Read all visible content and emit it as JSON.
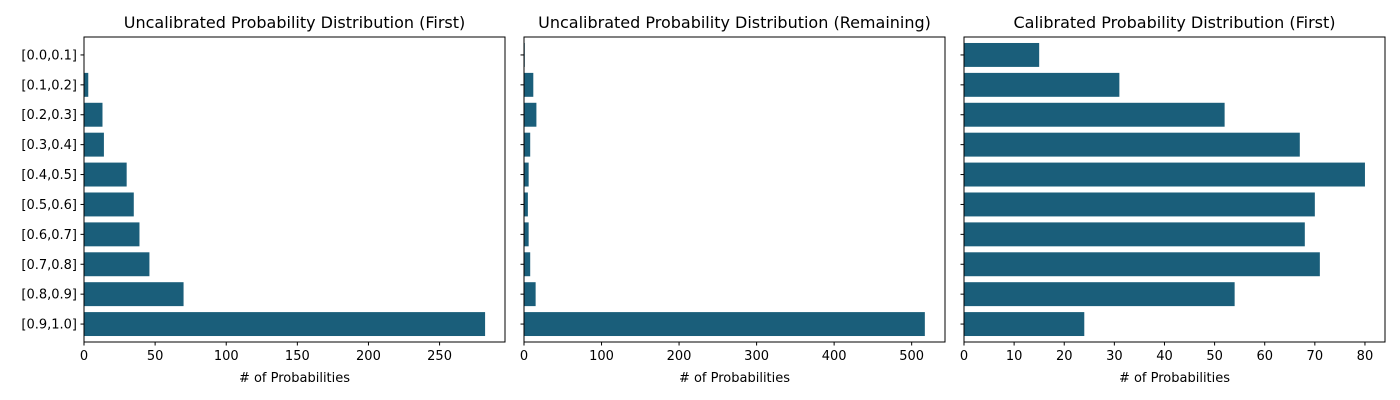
{
  "chart_data": [
    {
      "type": "bar",
      "orientation": "horizontal",
      "title": "Uncalibrated Probability Distribution (First)",
      "xlabel": "# of Probabilities",
      "ylabel": "",
      "categories": [
        "[0.0,0.1]",
        "[0.1,0.2]",
        "[0.2,0.3]",
        "[0.3,0.4]",
        "[0.4,0.5]",
        "[0.5,0.6]",
        "[0.6,0.7]",
        "[0.7,0.8]",
        "[0.8,0.9]",
        "[0.9,1.0]"
      ],
      "values": [
        0,
        3,
        13,
        14,
        30,
        35,
        39,
        46,
        70,
        282
      ],
      "xlim": [
        0,
        296
      ],
      "xticks": [
        0,
        50,
        100,
        150,
        200,
        250
      ],
      "show_ytick_labels": true,
      "grid": false,
      "color": "#1a5e7a"
    },
    {
      "type": "bar",
      "orientation": "horizontal",
      "title": "Uncalibrated Probability Distribution (Remaining)",
      "xlabel": "# of Probabilities",
      "ylabel": "",
      "categories": [
        "[0.0,0.1]",
        "[0.1,0.2]",
        "[0.2,0.3]",
        "[0.3,0.4]",
        "[0.4,0.5]",
        "[0.5,0.6]",
        "[0.6,0.7]",
        "[0.7,0.8]",
        "[0.8,0.9]",
        "[0.9,1.0]"
      ],
      "values": [
        1,
        12,
        16,
        8,
        6,
        5,
        6,
        8,
        15,
        517
      ],
      "xlim": [
        0,
        543
      ],
      "xticks": [
        0,
        100,
        200,
        300,
        400,
        500
      ],
      "show_ytick_labels": false,
      "grid": false,
      "color": "#1a5e7a"
    },
    {
      "type": "bar",
      "orientation": "horizontal",
      "title": "Calibrated Probability Distribution (First)",
      "xlabel": "# of Probabilities",
      "ylabel": "",
      "categories": [
        "[0.0,0.1]",
        "[0.1,0.2]",
        "[0.2,0.3]",
        "[0.3,0.4]",
        "[0.4,0.5]",
        "[0.5,0.6]",
        "[0.6,0.7]",
        "[0.7,0.8]",
        "[0.8,0.9]",
        "[0.9,1.0]"
      ],
      "values": [
        15,
        31,
        52,
        67,
        80,
        70,
        68,
        71,
        54,
        24
      ],
      "xlim": [
        0,
        84
      ],
      "xticks": [
        0,
        10,
        20,
        30,
        40,
        50,
        60,
        70,
        80
      ],
      "show_ytick_labels": false,
      "grid": false,
      "color": "#1a5e7a"
    }
  ]
}
